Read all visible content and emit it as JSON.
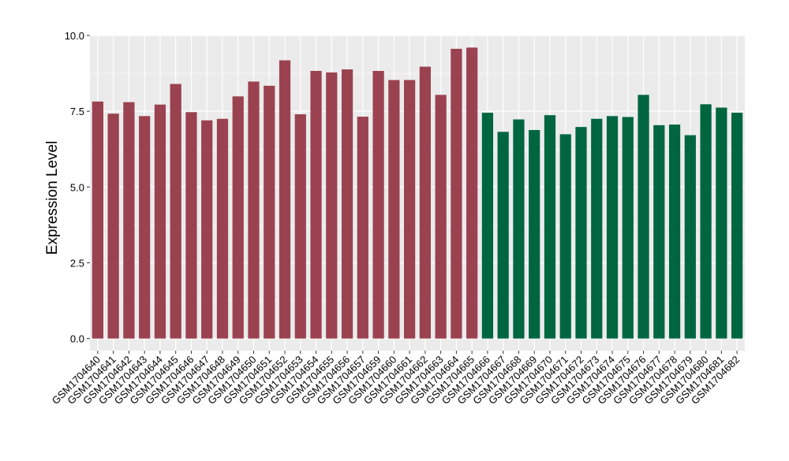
{
  "chart_data": {
    "type": "bar",
    "ylabel": "Expression Level",
    "ylim": [
      -0.4,
      10.0
    ],
    "yticks": [
      0.0,
      2.5,
      5.0,
      7.5,
      10.0
    ],
    "ytick_labels": [
      "0.0",
      "2.5",
      "5.0",
      "7.5",
      "10.0"
    ],
    "grid": true,
    "colors": {
      "group1": "#9B4250",
      "group2": "#006640",
      "panel": "#EBEBEB",
      "grid": "#FFFFFF"
    },
    "categories": [
      "GSM1704640",
      "GSM1704641",
      "GSM1704642",
      "GSM1704643",
      "GSM1704644",
      "GSM1704645",
      "GSM1704646",
      "GSM1704647",
      "GSM1704648",
      "GSM1704649",
      "GSM1704650",
      "GSM1704651",
      "GSM1704652",
      "GSM1704653",
      "GSM1704654",
      "GSM1704655",
      "GSM1704656",
      "GSM1704657",
      "GSM1704659",
      "GSM1704660",
      "GSM1704661",
      "GSM1704662",
      "GSM1704663",
      "GSM1704664",
      "GSM1704665",
      "GSM1704666",
      "GSM1704667",
      "GSM1704668",
      "GSM1704669",
      "GSM1704670",
      "GSM1704671",
      "GSM1704672",
      "GSM1704673",
      "GSM1704674",
      "GSM1704675",
      "GSM1704676",
      "GSM1704677",
      "GSM1704678",
      "GSM1704679",
      "GSM1704680",
      "GSM1704681",
      "GSM1704682"
    ],
    "values": [
      7.82,
      7.42,
      7.8,
      7.34,
      7.72,
      8.4,
      7.47,
      7.2,
      7.25,
      7.99,
      8.48,
      8.34,
      9.18,
      7.4,
      8.83,
      8.78,
      8.88,
      7.32,
      8.83,
      8.53,
      8.53,
      8.97,
      8.04,
      9.56,
      9.6,
      7.45,
      6.82,
      7.23,
      6.88,
      7.37,
      6.74,
      6.98,
      7.25,
      7.34,
      7.31,
      8.04,
      7.04,
      7.06,
      6.71,
      7.73,
      7.62,
      7.45
    ],
    "groups": [
      1,
      1,
      1,
      1,
      1,
      1,
      1,
      1,
      1,
      1,
      1,
      1,
      1,
      1,
      1,
      1,
      1,
      1,
      1,
      1,
      1,
      1,
      1,
      1,
      1,
      2,
      2,
      2,
      2,
      2,
      2,
      2,
      2,
      2,
      2,
      2,
      2,
      2,
      2,
      2,
      2,
      2
    ]
  }
}
